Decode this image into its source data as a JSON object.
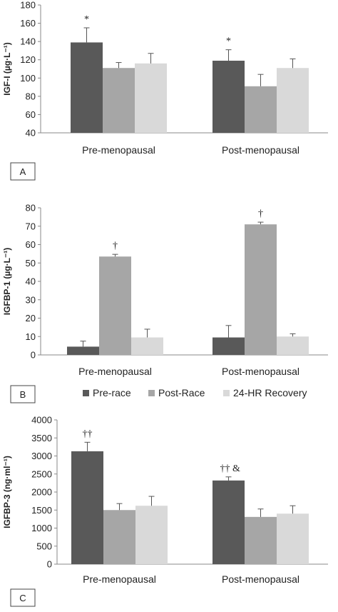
{
  "legend": [
    {
      "name": "Pre-race",
      "color": "#595959"
    },
    {
      "name": "Post-Race",
      "color": "#a6a6a6"
    },
    {
      "name": "24-HR Recovery",
      "color": "#d9d9d9"
    }
  ],
  "chart_data": [
    {
      "type": "bar",
      "panel_label": "A",
      "ylabel": "IGF-I (µg·L⁻¹)",
      "ylim": [
        40,
        180
      ],
      "yticks": [
        40,
        60,
        80,
        100,
        120,
        140,
        160,
        180
      ],
      "categories": [
        "Pre-menopausal",
        "Post-menopausal"
      ],
      "series": [
        {
          "name": "Pre-race",
          "values": [
            139,
            119
          ],
          "errors": [
            16,
            12
          ]
        },
        {
          "name": "Post-Race",
          "values": [
            111,
            91
          ],
          "errors": [
            6,
            13
          ]
        },
        {
          "name": "24-HR Recovery",
          "values": [
            116,
            111
          ],
          "errors": [
            11,
            10
          ]
        }
      ],
      "annotations": [
        {
          "category": 0,
          "series": 0,
          "text": "*"
        },
        {
          "category": 1,
          "series": 0,
          "text": "*"
        }
      ]
    },
    {
      "type": "bar",
      "panel_label": "B",
      "ylabel": "IGFBP-1 (µg·L⁻¹)",
      "ylim": [
        0,
        80
      ],
      "yticks": [
        0,
        10,
        20,
        30,
        40,
        50,
        60,
        70,
        80
      ],
      "categories": [
        "Pre-menopausal",
        "Post-menopausal"
      ],
      "series": [
        {
          "name": "Pre-race",
          "values": [
            4.5,
            9.5
          ],
          "errors": [
            3,
            6.5
          ]
        },
        {
          "name": "Post-Race",
          "values": [
            53.5,
            71
          ],
          "errors": [
            1.2,
            1.2
          ]
        },
        {
          "name": "24-HR Recovery",
          "values": [
            9.5,
            10
          ],
          "errors": [
            4.5,
            1.5
          ]
        }
      ],
      "annotations": [
        {
          "category": 0,
          "series": 1,
          "text": "†"
        },
        {
          "category": 1,
          "series": 1,
          "text": "†"
        }
      ]
    },
    {
      "type": "bar",
      "panel_label": "C",
      "ylabel": "IGFBP-3 (ng·ml⁻¹)",
      "ylim": [
        0,
        4000
      ],
      "yticks": [
        0,
        500,
        1000,
        1500,
        2000,
        2500,
        3000,
        3500,
        4000
      ],
      "categories": [
        "Pre-menopausal",
        "Post-menopausal"
      ],
      "series": [
        {
          "name": "Pre-race",
          "values": [
            3130,
            2320
          ],
          "errors": [
            250,
            100
          ]
        },
        {
          "name": "Post-Race",
          "values": [
            1500,
            1310
          ],
          "errors": [
            180,
            220
          ]
        },
        {
          "name": "24-HR Recovery",
          "values": [
            1620,
            1400
          ],
          "errors": [
            260,
            220
          ]
        }
      ],
      "annotations": [
        {
          "category": 0,
          "series": 0,
          "text": "††"
        },
        {
          "category": 1,
          "series": 0,
          "text": "††  &"
        }
      ]
    }
  ]
}
